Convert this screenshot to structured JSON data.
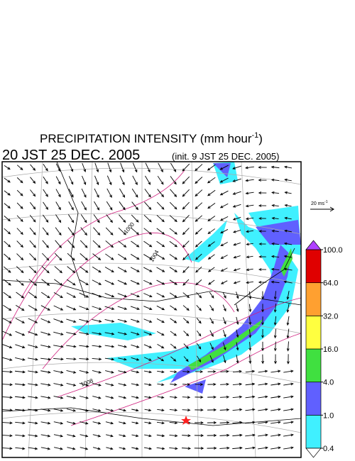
{
  "title": {
    "text": "PRECIPITATION INTENSITY (mm hour",
    "superscript": "-1",
    "close": ")"
  },
  "valid_time": "20 JST 25 DEC. 2005",
  "init_time": "(init. 9 JST 25 DEC. 2005)",
  "wind_scale": {
    "label": "20 ms",
    "superscript": "-1"
  },
  "colorbar": {
    "ticks": [
      {
        "value": 0.4,
        "label": "0.4"
      },
      {
        "value": 1,
        "label": "1.0"
      },
      {
        "value": 4,
        "label": "4.0"
      },
      {
        "value": 16,
        "label": "16.0"
      },
      {
        "value": 32,
        "label": "32.0"
      },
      {
        "value": 64,
        "label": "64.0"
      },
      {
        "value": 100,
        "label": "100.0"
      }
    ],
    "colors": [
      "#40f0ff",
      "#6060ff",
      "#40e040",
      "#ffff40",
      "#ffa030",
      "#e00000"
    ],
    "over_color": "#b040ff",
    "under_color": "#ffffff"
  },
  "contour_labels": [
    "1000",
    "1004",
    "1008"
  ]
}
